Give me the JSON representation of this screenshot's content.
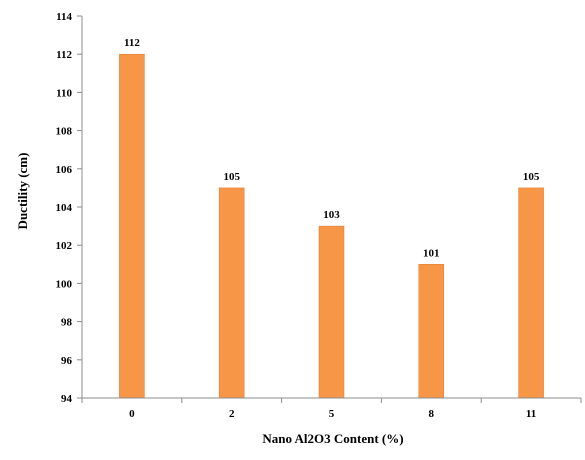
{
  "chart_data": {
    "type": "bar",
    "categories": [
      "0",
      "2",
      "5",
      "8",
      "11"
    ],
    "values": [
      112,
      105,
      103,
      101,
      105
    ],
    "data_labels": [
      "112",
      "105",
      "103",
      "101",
      "105"
    ],
    "title": "",
    "xlabel": "Nano Al2O3 Content (%)",
    "ylabel": "Ductility (cm)",
    "ylim": [
      94,
      114
    ],
    "yticks": [
      "94",
      "96",
      "98",
      "100",
      "102",
      "104",
      "106",
      "108",
      "110",
      "112",
      "114"
    ],
    "grid": false,
    "legend": "none",
    "bar_color": "#F79646",
    "bar_edge_color": "#E0782E",
    "axis_color": "#8C8C8C"
  }
}
